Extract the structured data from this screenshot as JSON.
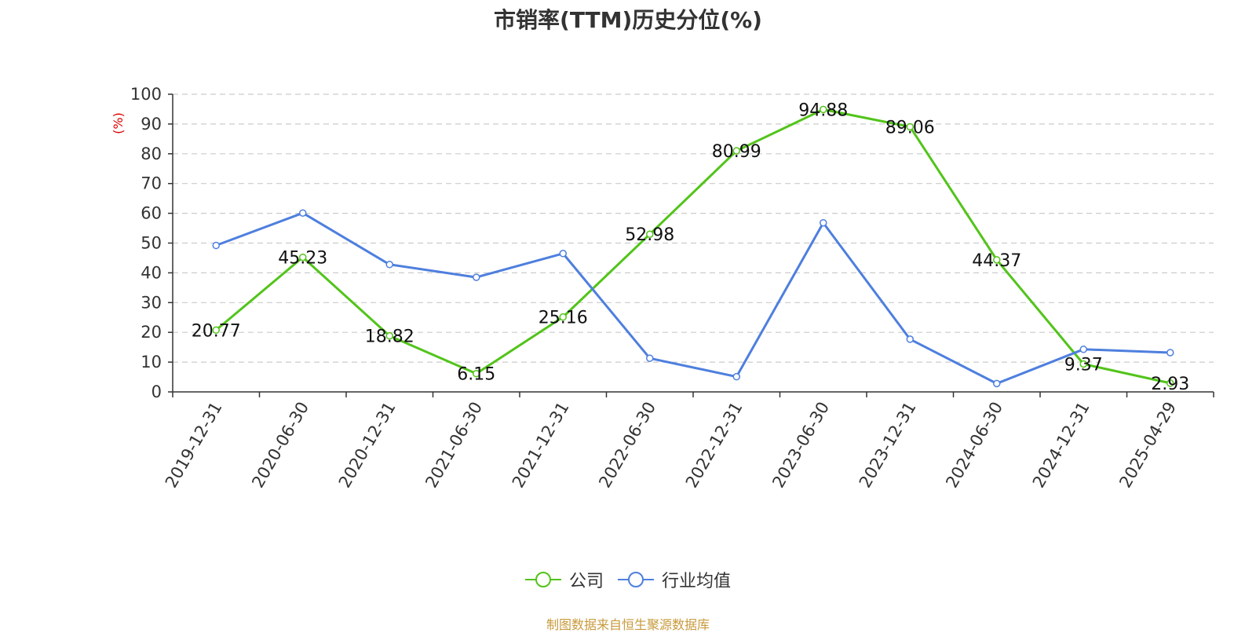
{
  "chart_data": {
    "type": "line",
    "title": "市销率(TTM)历史分位(%)",
    "ylabel": "(%)",
    "ylim": [
      0,
      100
    ],
    "yticks": [
      0,
      10,
      20,
      30,
      40,
      50,
      60,
      70,
      80,
      90,
      100
    ],
    "grid": true,
    "legend_position": "bottom",
    "categories": [
      "2019-12-31",
      "2020-06-30",
      "2020-12-31",
      "2021-06-30",
      "2021-12-31",
      "2022-06-30",
      "2022-12-31",
      "2023-06-30",
      "2023-12-31",
      "2024-06-30",
      "2024-12-31",
      "2025-04-29"
    ],
    "series": [
      {
        "name": "公司",
        "color": "#52c41a",
        "show_labels": true,
        "values": [
          20.77,
          45.23,
          18.82,
          6.15,
          25.16,
          52.98,
          80.99,
          94.88,
          89.06,
          44.37,
          9.37,
          2.93
        ],
        "labels": [
          "20.77",
          "45.23",
          "18.82",
          "6.15",
          "25.16",
          "52.98",
          "80.99",
          "94.88",
          "89.06",
          "44.37",
          "9.37",
          "2.93"
        ]
      },
      {
        "name": "行业均值",
        "color": "#4e7fde",
        "show_labels": false,
        "values": [
          49.2,
          60.1,
          42.8,
          38.5,
          46.5,
          11.3,
          5.1,
          56.8,
          17.7,
          2.8,
          14.3,
          13.2
        ]
      }
    ]
  },
  "footer": {
    "source": "制图数据来自恒生聚源数据库"
  }
}
